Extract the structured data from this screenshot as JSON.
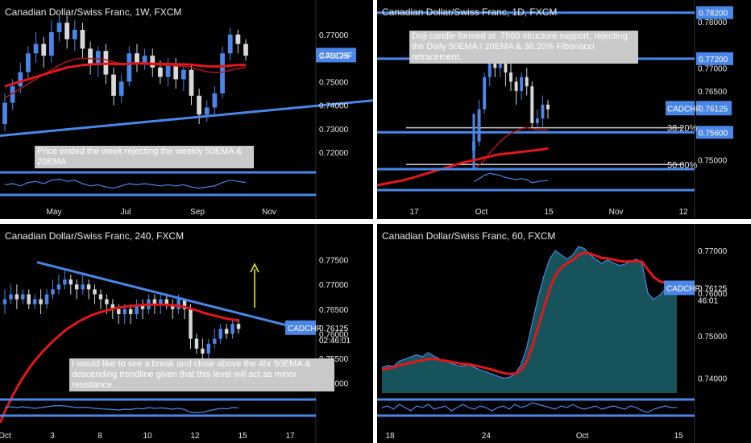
{
  "colors": {
    "background": "#000000",
    "accent": "#4a86e8",
    "ema": "#e3171b",
    "bull": "#4a86e8",
    "bear": "#d8d8d8",
    "text": "#e8e8e8",
    "note_bg": "#c9c9c9",
    "arrow": "#f2f200",
    "fill": "#1d6f78"
  },
  "chart_data": [
    {
      "type": "candlestick",
      "title": "Canadian Dollar/Swiss Franc, 1W, FXCM",
      "symbol": "CADCHF",
      "price_label": "0.76125",
      "yticks": [
        "0.77000",
        "0.76000",
        "0.75000",
        "0.74000",
        "0.73000",
        "0.72000"
      ],
      "ylim": [
        0.7135,
        0.7785
      ],
      "xticks": [
        "May",
        "Jul",
        "Sep",
        "Nov"
      ],
      "annotation": "Price ended the week rejecting the weekly 50EMA & 20EMA",
      "candles": [
        [
          0.732,
          0.741,
          0.729,
          0.745
        ],
        [
          0.741,
          0.748,
          0.738,
          0.751
        ],
        [
          0.748,
          0.754,
          0.745,
          0.758
        ],
        [
          0.754,
          0.762,
          0.751,
          0.765
        ],
        [
          0.762,
          0.766,
          0.758,
          0.771
        ],
        [
          0.766,
          0.761,
          0.756,
          0.769
        ],
        [
          0.761,
          0.771,
          0.758,
          0.776
        ],
        [
          0.771,
          0.775,
          0.767,
          0.778
        ],
        [
          0.775,
          0.768,
          0.764,
          0.778
        ],
        [
          0.768,
          0.772,
          0.763,
          0.776
        ],
        [
          0.772,
          0.764,
          0.76,
          0.775
        ],
        [
          0.764,
          0.757,
          0.753,
          0.767
        ],
        [
          0.757,
          0.763,
          0.752,
          0.765
        ],
        [
          0.763,
          0.753,
          0.749,
          0.766
        ],
        [
          0.753,
          0.744,
          0.74,
          0.756
        ],
        [
          0.744,
          0.75,
          0.741,
          0.753
        ],
        [
          0.75,
          0.762,
          0.748,
          0.765
        ],
        [
          0.762,
          0.758,
          0.754,
          0.766
        ],
        [
          0.758,
          0.761,
          0.755,
          0.764
        ],
        [
          0.761,
          0.756,
          0.752,
          0.764
        ],
        [
          0.756,
          0.752,
          0.749,
          0.759
        ],
        [
          0.752,
          0.757,
          0.748,
          0.76
        ],
        [
          0.757,
          0.751,
          0.747,
          0.76
        ],
        [
          0.751,
          0.755,
          0.746,
          0.758
        ],
        [
          0.755,
          0.744,
          0.74,
          0.757
        ],
        [
          0.744,
          0.736,
          0.732,
          0.747
        ],
        [
          0.736,
          0.739,
          0.733,
          0.742
        ],
        [
          0.739,
          0.745,
          0.736,
          0.748
        ],
        [
          0.745,
          0.762,
          0.743,
          0.765
        ],
        [
          0.762,
          0.77,
          0.759,
          0.773
        ],
        [
          0.77,
          0.766,
          0.762,
          0.772
        ],
        [
          0.766,
          0.761,
          0.759,
          0.768
        ]
      ],
      "ema50": [
        0.748,
        0.749,
        0.75,
        0.751,
        0.752,
        0.753,
        0.754,
        0.755,
        0.756,
        0.7565,
        0.757,
        0.7573,
        0.7575,
        0.7576,
        0.7575,
        0.7574,
        0.7576,
        0.7577,
        0.7577,
        0.7576,
        0.7575,
        0.7575,
        0.7574,
        0.7573,
        0.7572,
        0.7568,
        0.7565,
        0.7564,
        0.7565,
        0.7568,
        0.757,
        0.7571
      ],
      "ema20": [
        0.743,
        0.745,
        0.747,
        0.749,
        0.751,
        0.753,
        0.755,
        0.757,
        0.7585,
        0.7595,
        0.76,
        0.7598,
        0.7597,
        0.7592,
        0.7583,
        0.7577,
        0.7576,
        0.7575,
        0.7574,
        0.7572,
        0.757,
        0.7569,
        0.7567,
        0.7565,
        0.756,
        0.755,
        0.7542,
        0.7538,
        0.754,
        0.7548,
        0.7555,
        0.756
      ],
      "trendline": [
        0.727,
        0.742
      ],
      "oscillator": [
        0.45,
        0.5,
        0.4,
        0.55,
        0.6,
        0.5,
        0.65,
        0.7,
        0.6,
        0.65,
        0.5,
        0.4,
        0.45,
        0.35,
        0.3,
        0.4,
        0.5,
        0.45,
        0.5,
        0.45,
        0.4,
        0.45,
        0.4,
        0.45,
        0.35,
        0.3,
        0.35,
        0.4,
        0.55,
        0.65,
        0.6,
        0.55
      ]
    },
    {
      "type": "candlestick",
      "title": "Canadian Dollar/Swiss Franc, 1D, FXCM",
      "symbol": "CADCHF",
      "price_label": "0.76125",
      "yticks": [
        "0.78000",
        "0.77000",
        "0.76500",
        "0.75000"
      ],
      "ylim": [
        0.748,
        0.783
      ],
      "levels": [
        {
          "value": 0.782,
          "label": "0.78200"
        },
        {
          "value": 0.772,
          "label": "0.77200"
        },
        {
          "value": 0.756,
          "label": "0.75600"
        }
      ],
      "fib": [
        {
          "value": 0.757,
          "label": "38.20%"
        },
        {
          "value": 0.749,
          "label": "50.00%"
        }
      ],
      "xticks": [
        "17",
        "Oct",
        "15",
        "Nov",
        "12"
      ],
      "annotation": "Doji candle formed at .7560 structure support, rejecting the Daily 50EMA / 20EMA & 38.20% Fibonacci retracement.",
      "candles": [
        [
          0.752,
          0.754,
          0.749,
          0.76
        ],
        [
          0.754,
          0.761,
          0.753,
          0.763
        ],
        [
          0.761,
          0.768,
          0.76,
          0.769
        ],
        [
          0.768,
          0.772,
          0.766,
          0.774
        ],
        [
          0.772,
          0.77,
          0.768,
          0.775
        ],
        [
          0.77,
          0.773,
          0.768,
          0.775
        ],
        [
          0.773,
          0.769,
          0.766,
          0.775
        ],
        [
          0.769,
          0.767,
          0.765,
          0.771
        ],
        [
          0.767,
          0.765,
          0.762,
          0.768
        ],
        [
          0.765,
          0.768,
          0.763,
          0.769
        ],
        [
          0.768,
          0.766,
          0.764,
          0.77
        ],
        [
          0.766,
          0.758,
          0.757,
          0.767
        ],
        [
          0.758,
          0.759,
          0.757,
          0.761
        ],
        [
          0.759,
          0.762,
          0.757,
          0.764
        ],
        [
          0.762,
          0.761,
          0.759,
          0.763
        ]
      ],
      "ema50": [
        0.7445,
        0.745,
        0.7455,
        0.7462,
        0.747,
        0.7478,
        0.7486,
        0.7494,
        0.75,
        0.7506,
        0.7512,
        0.7515,
        0.7518,
        0.7521,
        0.7525
      ],
      "ema20": [
        0.748,
        0.7488,
        0.75,
        0.7515,
        0.7528,
        0.754,
        0.755,
        0.7558,
        0.7563,
        0.7568,
        0.757,
        0.7568,
        0.7566,
        0.7565,
        0.7566
      ],
      "oscillator": [
        0.4,
        0.55,
        0.7,
        0.8,
        0.75,
        0.7,
        0.6,
        0.55,
        0.5,
        0.55,
        0.5,
        0.35,
        0.4,
        0.45,
        0.45
      ]
    },
    {
      "type": "candlestick",
      "title": "Canadian Dollar/Swiss Franc, 240, FXCM",
      "symbol": "CADCHF",
      "price_label": "0.76125",
      "countdown": "02:46:01",
      "yticks": [
        "0.77500",
        "0.77000",
        "0.76500",
        "0.76000",
        "0.75500",
        "0.75000"
      ],
      "ylim": [
        0.748,
        0.779
      ],
      "xticks": [
        "Oct",
        "3",
        "8",
        "10",
        "12",
        "15",
        "17"
      ],
      "annotation": "I would like to see a break and close above the 4hr 50EMA & descending trendline given that this level will act as minor resistance.",
      "candles": [
        [
          0.766,
          0.767,
          0.764,
          0.769
        ],
        [
          0.767,
          0.768,
          0.766,
          0.77
        ],
        [
          0.768,
          0.767,
          0.765,
          0.77
        ],
        [
          0.767,
          0.768,
          0.766,
          0.769
        ],
        [
          0.768,
          0.766,
          0.765,
          0.769
        ],
        [
          0.766,
          0.767,
          0.765,
          0.768
        ],
        [
          0.767,
          0.766,
          0.764,
          0.769
        ],
        [
          0.766,
          0.768,
          0.765,
          0.769
        ],
        [
          0.768,
          0.769,
          0.767,
          0.771
        ],
        [
          0.769,
          0.77,
          0.768,
          0.772
        ],
        [
          0.77,
          0.771,
          0.769,
          0.773
        ],
        [
          0.771,
          0.77,
          0.768,
          0.772
        ],
        [
          0.77,
          0.769,
          0.767,
          0.771
        ],
        [
          0.769,
          0.77,
          0.768,
          0.772
        ],
        [
          0.77,
          0.769,
          0.767,
          0.771
        ],
        [
          0.769,
          0.768,
          0.766,
          0.77
        ],
        [
          0.768,
          0.767,
          0.765,
          0.769
        ],
        [
          0.767,
          0.766,
          0.764,
          0.768
        ],
        [
          0.766,
          0.765,
          0.763,
          0.767
        ],
        [
          0.765,
          0.764,
          0.762,
          0.766
        ],
        [
          0.764,
          0.765,
          0.762,
          0.766
        ],
        [
          0.765,
          0.764,
          0.762,
          0.766
        ],
        [
          0.764,
          0.766,
          0.763,
          0.767
        ],
        [
          0.766,
          0.765,
          0.763,
          0.767
        ],
        [
          0.765,
          0.767,
          0.764,
          0.768
        ],
        [
          0.767,
          0.766,
          0.764,
          0.768
        ],
        [
          0.766,
          0.767,
          0.764,
          0.768
        ],
        [
          0.767,
          0.766,
          0.765,
          0.768
        ],
        [
          0.766,
          0.765,
          0.763,
          0.767
        ],
        [
          0.765,
          0.767,
          0.764,
          0.768
        ],
        [
          0.767,
          0.765,
          0.763,
          0.767
        ],
        [
          0.765,
          0.759,
          0.757,
          0.766
        ],
        [
          0.759,
          0.757,
          0.756,
          0.76
        ],
        [
          0.757,
          0.756,
          0.755,
          0.759
        ],
        [
          0.756,
          0.758,
          0.755,
          0.759
        ],
        [
          0.758,
          0.759,
          0.757,
          0.761
        ],
        [
          0.759,
          0.761,
          0.758,
          0.762
        ],
        [
          0.761,
          0.76,
          0.759,
          0.762
        ],
        [
          0.76,
          0.762,
          0.759,
          0.763
        ],
        [
          0.762,
          0.761,
          0.76,
          0.763
        ]
      ],
      "ema50": [
        0.742,
        0.7448,
        0.7473,
        0.7496,
        0.7516,
        0.7534,
        0.755,
        0.7564,
        0.7577,
        0.7589,
        0.76,
        0.761,
        0.7618,
        0.7626,
        0.7632,
        0.7638,
        0.7642,
        0.7646,
        0.7649,
        0.7652,
        0.7654,
        0.7656,
        0.7657,
        0.7658,
        0.7659,
        0.7659,
        0.7659,
        0.7659,
        0.7658,
        0.7657,
        0.7655,
        0.7652,
        0.7648,
        0.7644,
        0.764,
        0.7637,
        0.7634,
        0.7631,
        0.7629,
        0.7627
      ],
      "trendline": [
        0.7745,
        0.7604
      ],
      "oscillator": [
        0.5,
        0.55,
        0.5,
        0.55,
        0.5,
        0.45,
        0.5,
        0.55,
        0.6,
        0.62,
        0.6,
        0.55,
        0.5,
        0.52,
        0.5,
        0.45,
        0.42,
        0.4,
        0.38,
        0.35,
        0.4,
        0.38,
        0.45,
        0.42,
        0.5,
        0.45,
        0.48,
        0.45,
        0.4,
        0.45,
        0.38,
        0.2,
        0.18,
        0.2,
        0.3,
        0.38,
        0.45,
        0.42,
        0.5,
        0.48
      ]
    },
    {
      "type": "area",
      "title": "Canadian Dollar/Swiss Franc, 60, FXCM",
      "symbol": "CADCHF",
      "price_label": "0.76125",
      "countdown": "46:01",
      "yticks": [
        "0.77000",
        "0.76000",
        "0.75000",
        "0.74000"
      ],
      "ylim": [
        0.7365,
        0.7725
      ],
      "xticks": [
        "18",
        "24",
        "Oct",
        "15"
      ],
      "values": [
        0.7425,
        0.743,
        0.7428,
        0.744,
        0.7445,
        0.745,
        0.7455,
        0.745,
        0.746,
        0.7452,
        0.7445,
        0.744,
        0.7435,
        0.743,
        0.7428,
        0.7432,
        0.7425,
        0.742,
        0.7415,
        0.741,
        0.7405,
        0.74,
        0.7402,
        0.741,
        0.743,
        0.747,
        0.753,
        0.759,
        0.764,
        0.768,
        0.77,
        0.769,
        0.768,
        0.769,
        0.771,
        0.7705,
        0.769,
        0.768,
        0.767,
        0.7678,
        0.7672,
        0.7665,
        0.7668,
        0.7675,
        0.768,
        0.767,
        0.76,
        0.7585,
        0.7595,
        0.761,
        0.7605,
        0.7612
      ],
      "ema": [
        0.742,
        0.7423,
        0.7425,
        0.743,
        0.7433,
        0.7436,
        0.744,
        0.7442,
        0.7445,
        0.7445,
        0.7443,
        0.7441,
        0.7438,
        0.7436,
        0.7433,
        0.7433,
        0.743,
        0.7427,
        0.7424,
        0.742,
        0.7416,
        0.7412,
        0.741,
        0.7411,
        0.7418,
        0.7438,
        0.7475,
        0.752,
        0.7565,
        0.7608,
        0.7642,
        0.766,
        0.767,
        0.7678,
        0.769,
        0.7695,
        0.7693,
        0.7688,
        0.7683,
        0.7682,
        0.7679,
        0.7676,
        0.7674,
        0.7675,
        0.7676,
        0.7674,
        0.7655,
        0.7638,
        0.7628,
        0.7624,
        0.762,
        0.7618
      ],
      "oscillator": [
        0.5,
        0.6,
        0.4,
        0.7,
        0.5,
        0.3,
        0.6,
        0.5,
        0.7,
        0.4,
        0.5,
        0.6,
        0.3,
        0.5,
        0.7,
        0.5,
        0.4,
        0.6,
        0.5,
        0.3,
        0.5,
        0.6,
        0.4,
        0.7,
        0.5,
        0.6,
        0.8,
        0.7,
        0.6,
        0.5,
        0.4,
        0.6,
        0.5,
        0.7,
        0.5,
        0.4,
        0.5,
        0.6,
        0.4,
        0.5,
        0.6,
        0.5,
        0.4,
        0.6,
        0.5,
        0.3,
        0.2,
        0.4,
        0.5,
        0.6,
        0.5,
        0.5
      ]
    }
  ]
}
